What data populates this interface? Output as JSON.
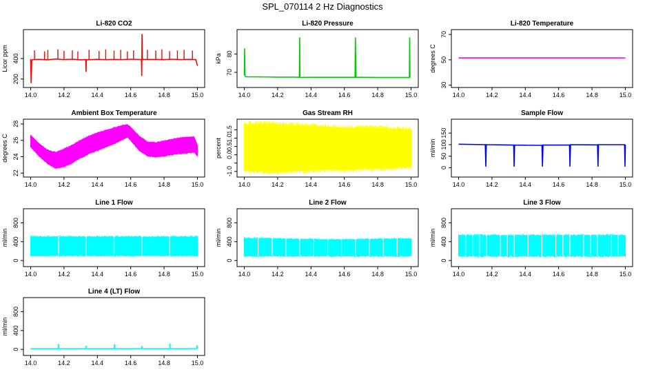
{
  "title": "SPL_070114  2 Hz Diagnostics",
  "colors": {
    "red": "#ff0000",
    "green": "#00cd00",
    "magenta": "#ff00ff",
    "yellow": "#ffff00",
    "blue": "#0000ff",
    "cyan": "#00ffff",
    "axis": "#000000"
  },
  "chart_data": [
    {
      "type": "line",
      "title": "Li-820 CO2",
      "ylabel": "Licor ppm",
      "xlabel": "",
      "xlim": [
        14.0,
        15.0
      ],
      "ylim": [
        140,
        660
      ],
      "xticks": [
        14.0,
        14.2,
        14.4,
        14.6,
        14.8,
        15.0
      ],
      "xtick_labels": [
        "14.0",
        "14.2",
        "14.4",
        "14.6",
        "14.8",
        "15.0"
      ],
      "yticks": [
        200,
        400
      ],
      "ytick_labels": [
        "200",
        "400"
      ],
      "color": "#ff0000",
      "series": [
        {
          "name": "CO2",
          "x": [
            14.0,
            14.003,
            14.006,
            14.01,
            14.05,
            14.1,
            14.15,
            14.2,
            14.25,
            14.3,
            14.33,
            14.332,
            14.334,
            14.4,
            14.45,
            14.5,
            14.55,
            14.6,
            14.664,
            14.666,
            14.668,
            14.67,
            14.75,
            14.8,
            14.85,
            14.9,
            14.95,
            14.99,
            15.0
          ],
          "y": [
            395,
            160,
            380,
            390,
            392,
            388,
            395,
            390,
            393,
            388,
            390,
            270,
            388,
            392,
            389,
            391,
            390,
            393,
            390,
            230,
            640,
            392,
            391,
            389,
            393,
            390,
            392,
            390,
            330
          ]
        }
      ],
      "spikes": {
        "x": [
          14.023,
          14.083,
          14.103,
          14.163,
          14.2,
          14.25,
          14.283,
          14.35,
          14.41,
          14.45,
          14.5,
          14.54,
          14.58,
          14.617,
          14.7,
          14.75,
          14.787,
          14.833,
          14.88,
          14.92,
          14.97
        ],
        "y": [
          480,
          470,
          485,
          490,
          475,
          480,
          470,
          485,
          475,
          490,
          478,
          485,
          470,
          480,
          485,
          478,
          490,
          472,
          480,
          485,
          478
        ]
      }
    },
    {
      "type": "line",
      "title": "Li-820 Pressure",
      "ylabel": "kPa",
      "xlabel": "",
      "xlim": [
        14.0,
        15.0
      ],
      "ylim": [
        63,
        92
      ],
      "xticks": [
        14.0,
        14.2,
        14.4,
        14.6,
        14.8,
        15.0
      ],
      "xtick_labels": [
        "14.0",
        "14.2",
        "14.4",
        "14.6",
        "14.8",
        "15.0"
      ],
      "yticks": [
        70,
        80
      ],
      "ytick_labels": [
        "70",
        "80"
      ],
      "color": "#00cd00",
      "series": [
        {
          "name": "Pressure",
          "x": [
            14.0,
            14.002,
            14.004,
            14.008,
            14.1,
            14.2,
            14.3,
            14.33,
            14.332,
            14.334,
            14.4,
            14.5,
            14.6,
            14.664,
            14.666,
            14.668,
            14.67,
            14.7,
            14.8,
            14.9,
            14.99,
            14.992,
            14.994
          ],
          "y": [
            68.5,
            83,
            68.0,
            67.6,
            67.5,
            67.4,
            67.4,
            67.3,
            89,
            67.2,
            67.3,
            67.3,
            67.3,
            67.3,
            89,
            80,
            67.3,
            67.3,
            67.2,
            67.2,
            67.2,
            89,
            67.2
          ]
        }
      ]
    },
    {
      "type": "line",
      "title": "Li-820 Temperature",
      "ylabel": "degrees C",
      "xlabel": "",
      "xlim": [
        14.0,
        15.0
      ],
      "ylim": [
        30,
        72
      ],
      "xticks": [
        14.0,
        14.2,
        14.4,
        14.6,
        14.8,
        15.0
      ],
      "xtick_labels": [
        "14.0",
        "14.2",
        "14.4",
        "14.6",
        "14.8",
        "15.0"
      ],
      "yticks": [
        30,
        50,
        70
      ],
      "ytick_labels": [
        "30",
        "50",
        "70"
      ],
      "color": "#ff00ff",
      "series": [
        {
          "name": "Temperature",
          "x": [
            14.0,
            15.0
          ],
          "y": [
            51.5,
            51.5
          ]
        }
      ]
    },
    {
      "type": "area",
      "title": "Ambient Box Temperature",
      "ylabel": "degrees C",
      "xlabel": "",
      "xlim": [
        14.0,
        15.0
      ],
      "ylim": [
        21.8,
        28.3
      ],
      "xticks": [
        14.0,
        14.2,
        14.4,
        14.6,
        14.8,
        15.0
      ],
      "xtick_labels": [
        "14.0",
        "14.2",
        "14.4",
        "14.6",
        "14.8",
        "15.0"
      ],
      "yticks": [
        22,
        24,
        26,
        28
      ],
      "ytick_labels": [
        "22",
        "24",
        "26",
        "28"
      ],
      "color": "#ff00ff",
      "series": [
        {
          "name": "Ambient",
          "x": [
            14.0,
            14.05,
            14.1,
            14.15,
            14.2,
            14.25,
            14.3,
            14.35,
            14.4,
            14.45,
            14.5,
            14.55,
            14.58,
            14.6,
            14.65,
            14.7,
            14.75,
            14.8,
            14.85,
            14.9,
            14.95,
            14.98,
            15.0
          ],
          "upper": [
            26.6,
            25.6,
            24.8,
            24.5,
            24.9,
            25.4,
            26.0,
            26.5,
            26.9,
            27.2,
            27.5,
            27.8,
            27.9,
            27.6,
            26.5,
            25.8,
            25.7,
            25.9,
            26.1,
            26.3,
            26.4,
            26.4,
            25.4
          ],
          "lower": [
            25.2,
            24.1,
            23.2,
            22.6,
            22.8,
            23.3,
            23.9,
            24.4,
            24.8,
            25.2,
            25.6,
            26.1,
            26.4,
            26.0,
            24.8,
            24.1,
            24.0,
            24.1,
            24.3,
            24.4,
            24.5,
            24.6,
            24.1
          ]
        }
      ]
    },
    {
      "type": "area",
      "title": "Gas Stream RH",
      "ylabel": "percent",
      "xlabel": "",
      "xlim": [
        14.0,
        15.0
      ],
      "ylim": [
        -1.2,
        2.0
      ],
      "xticks": [
        14.0,
        14.2,
        14.4,
        14.6,
        14.8,
        15.0
      ],
      "xtick_labels": [
        "14.0",
        "14.2",
        "14.4",
        "14.6",
        "14.8",
        "15.0"
      ],
      "yticks": [
        -1.0,
        -0.5,
        0.0,
        0.5,
        1.0,
        1.5
      ],
      "ytick_labels": [
        "-1.0",
        "0.0",
        "0.5",
        "1.0",
        "1.5"
      ],
      "ytick_label_values": [
        -1.0,
        0.0,
        0.5,
        1.0,
        1.5
      ],
      "color": "#ffff00",
      "series": [
        {
          "name": "RH",
          "x": [
            14.0,
            14.1,
            14.2,
            14.3,
            14.4,
            14.5,
            14.6,
            14.7,
            14.8,
            14.9,
            15.0
          ],
          "upper": [
            1.8,
            1.85,
            1.8,
            1.75,
            1.7,
            1.65,
            1.6,
            1.6,
            1.6,
            1.55,
            1.5
          ],
          "lower": [
            -0.9,
            -0.95,
            -1.0,
            -0.95,
            -0.9,
            -0.85,
            -0.9,
            -0.85,
            -0.8,
            -0.75,
            -0.7
          ]
        }
      ]
    },
    {
      "type": "line",
      "title": "Sample Flow",
      "ylabel": "ml/min",
      "xlabel": "",
      "xlim": [
        14.0,
        15.0
      ],
      "ylim": [
        -30,
        200
      ],
      "xticks": [
        14.0,
        14.2,
        14.4,
        14.6,
        14.8,
        15.0
      ],
      "xtick_labels": [
        "14.0",
        "14.2",
        "14.4",
        "14.6",
        "14.8",
        "15.0"
      ],
      "yticks": [
        0,
        50,
        100,
        150
      ],
      "ytick_labels": [
        "0",
        "50",
        "100",
        "150"
      ],
      "color": "#0000ff",
      "series": [
        {
          "name": "Sample Flow",
          "x": [
            14.0,
            14.16,
            14.163,
            14.166,
            14.33,
            14.333,
            14.336,
            14.5,
            14.503,
            14.506,
            14.665,
            14.668,
            14.671,
            14.833,
            14.836,
            14.839,
            14.995,
            14.998,
            15.0
          ],
          "y": [
            102,
            100,
            5,
            100,
            98,
            5,
            98,
            97,
            5,
            98,
            98,
            5,
            100,
            99,
            5,
            100,
            100,
            5,
            100
          ]
        }
      ]
    },
    {
      "type": "area",
      "title": "Line 1 Flow",
      "ylabel": "ml/min",
      "xlabel": "",
      "xlim": [
        14.0,
        15.0
      ],
      "ylim": [
        -80,
        1050
      ],
      "xticks": [
        14.0,
        14.2,
        14.4,
        14.6,
        14.8,
        15.0
      ],
      "xtick_labels": [
        "14.0",
        "14.2",
        "14.4",
        "14.6",
        "14.8",
        "15.0"
      ],
      "yticks": [
        0,
        400,
        800
      ],
      "ytick_labels": [
        "0",
        "400",
        "800"
      ],
      "color": "#00ffff",
      "series": [
        {
          "name": "Line 1",
          "x": [
            14.0,
            15.0
          ],
          "upper": [
            500,
            500
          ],
          "lower": [
            110,
            110
          ]
        }
      ],
      "gaps": [
        14.167,
        14.333,
        14.5,
        14.667,
        14.833
      ]
    },
    {
      "type": "area",
      "title": "Line 2 Flow",
      "ylabel": "ml/min",
      "xlabel": "",
      "xlim": [
        14.0,
        15.0
      ],
      "ylim": [
        -80,
        1050
      ],
      "xticks": [
        14.0,
        14.2,
        14.4,
        14.6,
        14.8,
        15.0
      ],
      "xtick_labels": [
        "14.0",
        "14.2",
        "14.4",
        "14.6",
        "14.8",
        "15.0"
      ],
      "yticks": [
        0,
        400,
        800
      ],
      "ytick_labels": [
        "0",
        "400",
        "800"
      ],
      "color": "#00ffff",
      "series": [
        {
          "name": "Line 2",
          "x": [
            14.0,
            14.5,
            15.0
          ],
          "upper": [
            470,
            440,
            460
          ],
          "lower": [
            100,
            100,
            100
          ]
        }
      ],
      "gaps": [
        14.083,
        14.167,
        14.25,
        14.333,
        14.417,
        14.5,
        14.583,
        14.667,
        14.75,
        14.833,
        14.917
      ]
    },
    {
      "type": "area",
      "title": "Line 3 Flow",
      "ylabel": "ml/min",
      "xlabel": "",
      "xlim": [
        14.0,
        15.0
      ],
      "ylim": [
        -80,
        1050
      ],
      "xticks": [
        14.0,
        14.2,
        14.4,
        14.6,
        14.8,
        15.0
      ],
      "xtick_labels": [
        "14.0",
        "14.2",
        "14.4",
        "14.6",
        "14.8",
        "15.0"
      ],
      "yticks": [
        0,
        400,
        800
      ],
      "ytick_labels": [
        "0",
        "400",
        "800"
      ],
      "color": "#00ffff",
      "series": [
        {
          "name": "Line 3",
          "x": [
            14.0,
            15.0
          ],
          "upper": [
            530,
            530
          ],
          "lower": [
            100,
            100
          ]
        }
      ],
      "gaps": [
        14.042,
        14.083,
        14.125,
        14.167,
        14.25,
        14.292,
        14.333,
        14.417,
        14.5,
        14.583,
        14.625,
        14.667,
        14.75,
        14.792,
        14.833,
        14.917,
        14.958
      ]
    },
    {
      "type": "line",
      "title": "Line 4 (LT) Flow",
      "ylabel": "ml/min",
      "xlabel": "",
      "xlim": [
        14.0,
        15.0
      ],
      "ylim": [
        -80,
        1050
      ],
      "xticks": [
        14.0,
        14.2,
        14.4,
        14.6,
        14.8,
        15.0
      ],
      "xtick_labels": [
        "14.0",
        "14.2",
        "14.4",
        "14.6",
        "14.8",
        "15.0"
      ],
      "yticks": [
        0,
        400,
        800
      ],
      "ytick_labels": [
        "0",
        "400",
        "800"
      ],
      "color": "#00ffff",
      "series": [
        {
          "name": "Line 4",
          "x": [
            14.0,
            14.165,
            14.167,
            14.169,
            14.33,
            14.332,
            14.334,
            14.5,
            14.502,
            14.504,
            14.665,
            14.667,
            14.669,
            14.833,
            14.835,
            14.837,
            14.995,
            14.997,
            15.0
          ],
          "y": [
            15,
            15,
            120,
            15,
            15,
            80,
            15,
            15,
            110,
            15,
            15,
            70,
            15,
            15,
            130,
            15,
            15,
            90,
            15
          ]
        }
      ]
    }
  ]
}
